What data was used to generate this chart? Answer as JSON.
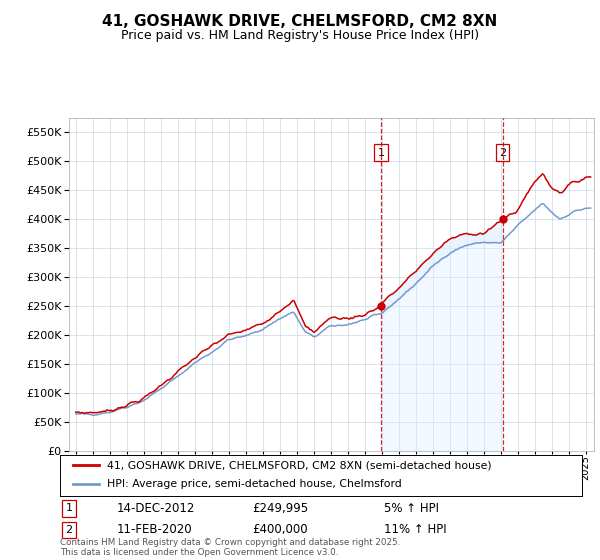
{
  "title": "41, GOSHAWK DRIVE, CHELMSFORD, CM2 8XN",
  "subtitle": "Price paid vs. HM Land Registry's House Price Index (HPI)",
  "legend_line1": "41, GOSHAWK DRIVE, CHELMSFORD, CM2 8XN (semi-detached house)",
  "legend_line2": "HPI: Average price, semi-detached house, Chelmsford",
  "annotation1_label": "1",
  "annotation1_date": "14-DEC-2012",
  "annotation1_price": "£249,995",
  "annotation1_hpi": "5% ↑ HPI",
  "annotation1_year": 2012.96,
  "annotation1_value": 249995,
  "annotation2_label": "2",
  "annotation2_date": "11-FEB-2020",
  "annotation2_price": "£400,000",
  "annotation2_hpi": "11% ↑ HPI",
  "annotation2_year": 2020.12,
  "annotation2_value": 400000,
  "red_color": "#cc0000",
  "blue_color": "#7799cc",
  "blue_fill": "#ddeeff",
  "background_color": "#ffffff",
  "grid_color": "#c8d8e8",
  "footnote": "Contains HM Land Registry data © Crown copyright and database right 2025.\nThis data is licensed under the Open Government Licence v3.0.",
  "ylim": [
    0,
    575000
  ],
  "yticks": [
    0,
    50000,
    100000,
    150000,
    200000,
    250000,
    300000,
    350000,
    400000,
    450000,
    500000,
    550000
  ],
  "xmin": 1994.6,
  "xmax": 2025.5,
  "hpi_anchors_x": [
    1995.0,
    1996.0,
    1997.0,
    1998.0,
    1999.0,
    2000.0,
    2001.0,
    2002.0,
    2003.0,
    2004.0,
    2005.0,
    2006.0,
    2007.0,
    2007.8,
    2008.5,
    2009.0,
    2010.0,
    2011.0,
    2012.0,
    2013.0,
    2014.0,
    2015.0,
    2016.0,
    2017.0,
    2018.0,
    2019.0,
    2020.0,
    2021.0,
    2022.0,
    2022.5,
    2023.0,
    2023.5,
    2024.0,
    2024.5,
    2025.0
  ],
  "hpi_anchors_y": [
    63000,
    63000,
    67000,
    76000,
    87000,
    107000,
    128000,
    152000,
    170000,
    192000,
    198000,
    210000,
    228000,
    240000,
    205000,
    196000,
    215000,
    218000,
    226000,
    237000,
    262000,
    288000,
    318000,
    342000,
    355000,
    360000,
    358000,
    388000,
    415000,
    427000,
    412000,
    400000,
    408000,
    415000,
    418000
  ],
  "prop_anchors_x": [
    1995.0,
    1996.0,
    1997.0,
    1998.0,
    1999.0,
    2000.0,
    2001.0,
    2002.0,
    2003.0,
    2004.0,
    2005.0,
    2006.0,
    2007.0,
    2007.8,
    2008.5,
    2009.0,
    2010.0,
    2011.0,
    2012.0,
    2012.96,
    2013.0,
    2014.0,
    2015.0,
    2016.0,
    2017.0,
    2018.0,
    2019.0,
    2020.0,
    2020.12,
    2021.0,
    2022.0,
    2022.5,
    2023.0,
    2023.5,
    2024.0,
    2024.5,
    2025.0
  ],
  "prop_anchors_y": [
    66000,
    66000,
    69000,
    79000,
    90000,
    113000,
    136000,
    160000,
    181000,
    200000,
    208000,
    220000,
    242000,
    260000,
    215000,
    205000,
    230000,
    228000,
    235000,
    249995,
    255000,
    280000,
    310000,
    340000,
    365000,
    375000,
    375000,
    395000,
    400000,
    415000,
    465000,
    478000,
    455000,
    445000,
    458000,
    465000,
    472000
  ]
}
